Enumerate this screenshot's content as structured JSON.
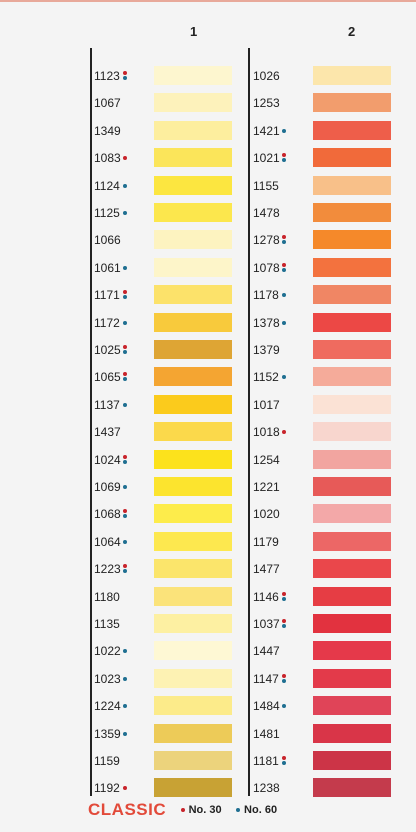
{
  "column_headers": [
    "1",
    "2"
  ],
  "legend": {
    "brand": "CLASSIC",
    "no30": "No. 30",
    "no60": "No. 60",
    "no30_color": "#c8242b",
    "no60_color": "#1f6f91"
  },
  "columns": [
    [
      {
        "code": "1123",
        "dots": [
          "red",
          "blue"
        ],
        "color": "#fdf6cf"
      },
      {
        "code": "1067",
        "dots": [],
        "color": "#fdf2bb"
      },
      {
        "code": "1349",
        "dots": [],
        "color": "#fdee9e"
      },
      {
        "code": "1083",
        "dots": [
          "red"
        ],
        "color": "#fbe55a"
      },
      {
        "code": "1124",
        "dots": [
          "blue"
        ],
        "color": "#fce640"
      },
      {
        "code": "1125",
        "dots": [
          "blue"
        ],
        "color": "#fce74d"
      },
      {
        "code": "1066",
        "dots": [],
        "color": "#fdf3c0"
      },
      {
        "code": "1061",
        "dots": [
          "blue"
        ],
        "color": "#fdf5c9"
      },
      {
        "code": "1171",
        "dots": [
          "red",
          "blue"
        ],
        "color": "#fce26a"
      },
      {
        "code": "1172",
        "dots": [
          "blue"
        ],
        "color": "#f8ca3c"
      },
      {
        "code": "1025",
        "dots": [
          "red",
          "blue"
        ],
        "color": "#dea534"
      },
      {
        "code": "1065",
        "dots": [
          "red",
          "blue"
        ],
        "color": "#f4a532"
      },
      {
        "code": "1137",
        "dots": [
          "blue"
        ],
        "color": "#fbcb1c"
      },
      {
        "code": "1437",
        "dots": [],
        "color": "#fbd94b"
      },
      {
        "code": "1024",
        "dots": [
          "red",
          "blue"
        ],
        "color": "#fce21c"
      },
      {
        "code": "1069",
        "dots": [
          "blue"
        ],
        "color": "#fce42e"
      },
      {
        "code": "1068",
        "dots": [
          "red",
          "blue"
        ],
        "color": "#fdec4b"
      },
      {
        "code": "1064",
        "dots": [
          "blue"
        ],
        "color": "#fde84f"
      },
      {
        "code": "1223",
        "dots": [
          "red",
          "blue"
        ],
        "color": "#fbe56b"
      },
      {
        "code": "1180",
        "dots": [],
        "color": "#fbe37a"
      },
      {
        "code": "1135",
        "dots": [],
        "color": "#fdf0a2"
      },
      {
        "code": "1022",
        "dots": [
          "blue"
        ],
        "color": "#fef8d4"
      },
      {
        "code": "1023",
        "dots": [
          "blue"
        ],
        "color": "#fdf2b3"
      },
      {
        "code": "1224",
        "dots": [
          "blue"
        ],
        "color": "#fceb8a"
      },
      {
        "code": "1359",
        "dots": [
          "blue"
        ],
        "color": "#edcb58"
      },
      {
        "code": "1159",
        "dots": [],
        "color": "#ecd37c"
      },
      {
        "code": "1192",
        "dots": [
          "red"
        ],
        "color": "#c8a234"
      }
    ],
    [
      {
        "code": "1026",
        "dots": [],
        "color": "#fce6ab"
      },
      {
        "code": "1253",
        "dots": [],
        "color": "#f29d6d"
      },
      {
        "code": "1421",
        "dots": [
          "blue"
        ],
        "color": "#ee5e4a"
      },
      {
        "code": "1021",
        "dots": [
          "red",
          "blue"
        ],
        "color": "#f16a3a"
      },
      {
        "code": "1155",
        "dots": [],
        "color": "#f8c089"
      },
      {
        "code": "1478",
        "dots": [],
        "color": "#f28c3c"
      },
      {
        "code": "1278",
        "dots": [
          "red",
          "blue"
        ],
        "color": "#f5892a"
      },
      {
        "code": "1078",
        "dots": [
          "red",
          "blue"
        ],
        "color": "#f3723e"
      },
      {
        "code": "1178",
        "dots": [
          "blue"
        ],
        "color": "#f08664"
      },
      {
        "code": "1378",
        "dots": [
          "blue"
        ],
        "color": "#ec4845"
      },
      {
        "code": "1379",
        "dots": [],
        "color": "#ef6b5f"
      },
      {
        "code": "1152",
        "dots": [
          "blue"
        ],
        "color": "#f5ab9a"
      },
      {
        "code": "1017",
        "dots": [],
        "color": "#fbe2d5"
      },
      {
        "code": "1018",
        "dots": [
          "red"
        ],
        "color": "#f8d6ce"
      },
      {
        "code": "1254",
        "dots": [],
        "color": "#f2a5a0"
      },
      {
        "code": "1221",
        "dots": [],
        "color": "#e75a58"
      },
      {
        "code": "1020",
        "dots": [],
        "color": "#f3a8a8"
      },
      {
        "code": "1179",
        "dots": [],
        "color": "#ec6766"
      },
      {
        "code": "1477",
        "dots": [],
        "color": "#ea474b"
      },
      {
        "code": "1146",
        "dots": [
          "red",
          "blue"
        ],
        "color": "#e63d44"
      },
      {
        "code": "1037",
        "dots": [
          "red",
          "blue"
        ],
        "color": "#e2323f"
      },
      {
        "code": "1447",
        "dots": [],
        "color": "#e5394a"
      },
      {
        "code": "1147",
        "dots": [
          "red",
          "blue"
        ],
        "color": "#e33a4a"
      },
      {
        "code": "1484",
        "dots": [
          "blue"
        ],
        "color": "#e04458"
      },
      {
        "code": "1481",
        "dots": [],
        "color": "#d93548"
      },
      {
        "code": "1181",
        "dots": [
          "red",
          "blue"
        ],
        "color": "#cc3447"
      },
      {
        "code": "1238",
        "dots": [],
        "color": "#c43b4c"
      }
    ]
  ]
}
